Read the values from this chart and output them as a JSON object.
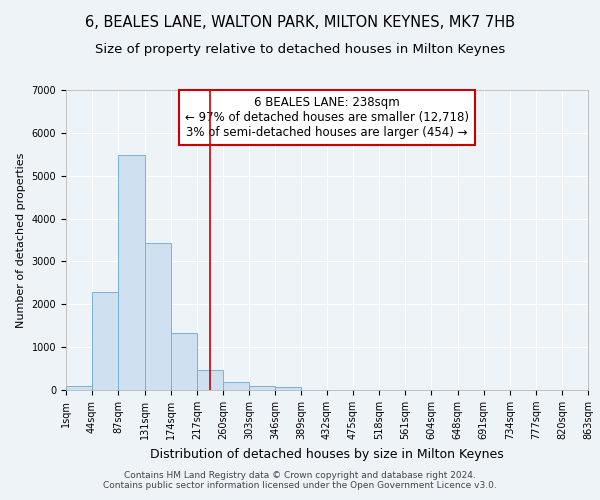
{
  "title": "6, BEALES LANE, WALTON PARK, MILTON KEYNES, MK7 7HB",
  "subtitle": "Size of property relative to detached houses in Milton Keynes",
  "xlabel": "Distribution of detached houses by size in Milton Keynes",
  "ylabel": "Number of detached properties",
  "bar_color": "#cfe0f0",
  "bar_edge_color": "#7ab0d8",
  "background_color": "#eef3f8",
  "plot_bg_color": "#eef3f8",
  "grid_color": "#ffffff",
  "annotation_text": "6 BEALES LANE: 238sqm\n← 97% of detached houses are smaller (12,718)\n3% of semi-detached houses are larger (454) →",
  "annotation_box_color": "#cc0000",
  "vline_x": 238,
  "vline_color": "#cc0000",
  "bin_edges": [
    1,
    44,
    87,
    131,
    174,
    217,
    260,
    303,
    346,
    389,
    432,
    475,
    518,
    561,
    604,
    648,
    691,
    734,
    777,
    820,
    863
  ],
  "bar_heights": [
    100,
    2280,
    5480,
    3430,
    1340,
    460,
    185,
    100,
    65,
    0,
    0,
    0,
    0,
    0,
    0,
    0,
    0,
    0,
    0,
    0
  ],
  "xlim": [
    1,
    863
  ],
  "ylim": [
    0,
    7000
  ],
  "yticks": [
    0,
    1000,
    2000,
    3000,
    4000,
    5000,
    6000,
    7000
  ],
  "xtick_labels": [
    "1sqm",
    "44sqm",
    "87sqm",
    "131sqm",
    "174sqm",
    "217sqm",
    "260sqm",
    "303sqm",
    "346sqm",
    "389sqm",
    "432sqm",
    "475sqm",
    "518sqm",
    "561sqm",
    "604sqm",
    "648sqm",
    "691sqm",
    "734sqm",
    "777sqm",
    "820sqm",
    "863sqm"
  ],
  "footer_text": "Contains HM Land Registry data © Crown copyright and database right 2024.\nContains public sector information licensed under the Open Government Licence v3.0.",
  "title_fontsize": 10.5,
  "subtitle_fontsize": 9.5,
  "xlabel_fontsize": 9,
  "ylabel_fontsize": 8,
  "tick_fontsize": 7,
  "footer_fontsize": 6.5,
  "annotation_fontsize": 8.5
}
